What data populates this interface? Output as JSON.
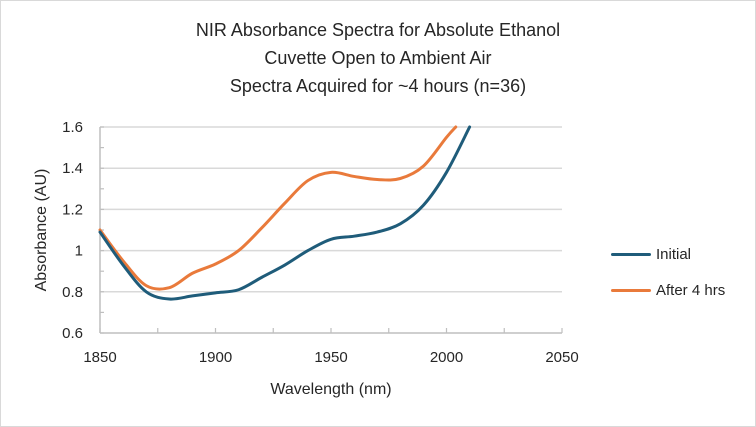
{
  "chart_data": {
    "type": "line",
    "title": [
      "NIR Absorbance Spectra for Absolute Ethanol",
      "Cuvette Open to Ambient Air",
      "Spectra Acquired for ~4 hours (n=36)"
    ],
    "xlabel": "Wavelength (nm)",
    "ylabel": "Absorbance (AU)",
    "xlim": [
      1850,
      2050
    ],
    "ylim": [
      0.6,
      1.6
    ],
    "x_ticks": [
      1850,
      1900,
      1950,
      2000,
      2050
    ],
    "x_tick_labels": [
      "1850",
      "1900",
      "1950",
      "2000",
      "2050"
    ],
    "x_minor_step": 25,
    "y_ticks": [
      0.6,
      0.8,
      1.0,
      1.2,
      1.4,
      1.6
    ],
    "y_tick_labels": [
      "0.6",
      "0.8",
      "1",
      "1.2",
      "1.4",
      "1.6"
    ],
    "y_minor_step": 0.1,
    "grid": true,
    "legend_position": "right",
    "series": [
      {
        "name": "Initial",
        "color": "#1f5c7a",
        "x": [
          1850,
          1860,
          1870,
          1880,
          1890,
          1900,
          1910,
          1920,
          1930,
          1940,
          1950,
          1960,
          1970,
          1980,
          1990,
          2000,
          2010
        ],
        "values": [
          1.09,
          0.93,
          0.8,
          0.765,
          0.78,
          0.795,
          0.81,
          0.87,
          0.93,
          1.0,
          1.055,
          1.07,
          1.09,
          1.13,
          1.22,
          1.38,
          1.6
        ]
      },
      {
        "name": "After 4 hrs",
        "color": "#e97a3b",
        "x": [
          1850,
          1860,
          1870,
          1880,
          1890,
          1900,
          1910,
          1920,
          1930,
          1940,
          1950,
          1960,
          1970,
          1980,
          1990,
          2000,
          2004
        ],
        "values": [
          1.1,
          0.95,
          0.83,
          0.82,
          0.89,
          0.935,
          1.0,
          1.11,
          1.23,
          1.34,
          1.38,
          1.36,
          1.345,
          1.35,
          1.41,
          1.55,
          1.6
        ]
      }
    ]
  }
}
